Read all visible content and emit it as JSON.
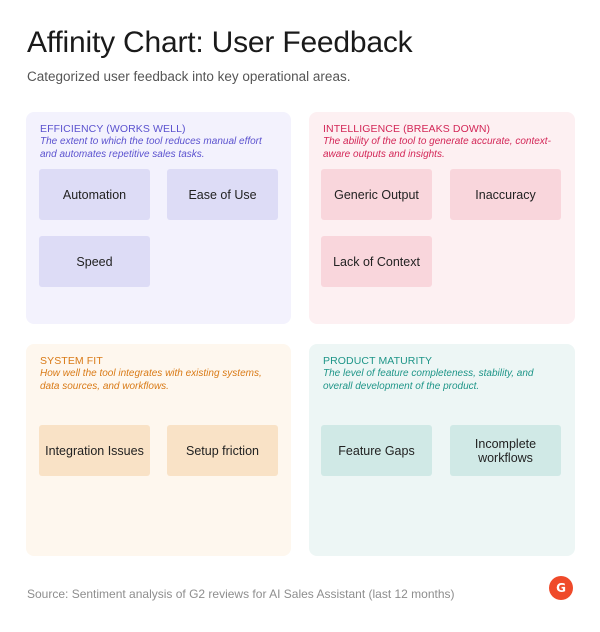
{
  "header": {
    "title": "Affinity Chart: User Feedback",
    "subtitle": "Categorized user feedback into key operational areas."
  },
  "quadrants": [
    {
      "title": "EFFICIENCY (WORKS WELL)",
      "description": "The extent to which the tool reduces manual effort and automates repetitive sales tasks.",
      "color": "#5b52cf",
      "cards": [
        "Automation",
        "Ease of Use",
        "Speed"
      ]
    },
    {
      "title": "INTELLIGENCE (BREAKS DOWN)",
      "description": "The ability of the tool to generate accurate, context-aware outputs and insights.",
      "color": "#d32657",
      "cards": [
        "Generic Output",
        "Inaccuracy",
        "Lack of Context"
      ]
    },
    {
      "title": "SYSTEM FIT",
      "description": "How well the tool integrates with existing systems, data sources, and workflows.",
      "color": "#d97a16",
      "cards": [
        "Integration Issues",
        "Setup friction"
      ]
    },
    {
      "title": "PRODUCT MATURITY",
      "description": "The level of feature completeness, stability, and overall development of the product.",
      "color": "#1e9588",
      "cards": [
        "Feature Gaps",
        "Incomplete workflows"
      ]
    }
  ],
  "footer": {
    "source": "Source: Sentiment analysis of G2 reviews for AI Sales Assistant (last 12 months)",
    "logo_text": "G",
    "logo_color": "#ef4a2a"
  }
}
